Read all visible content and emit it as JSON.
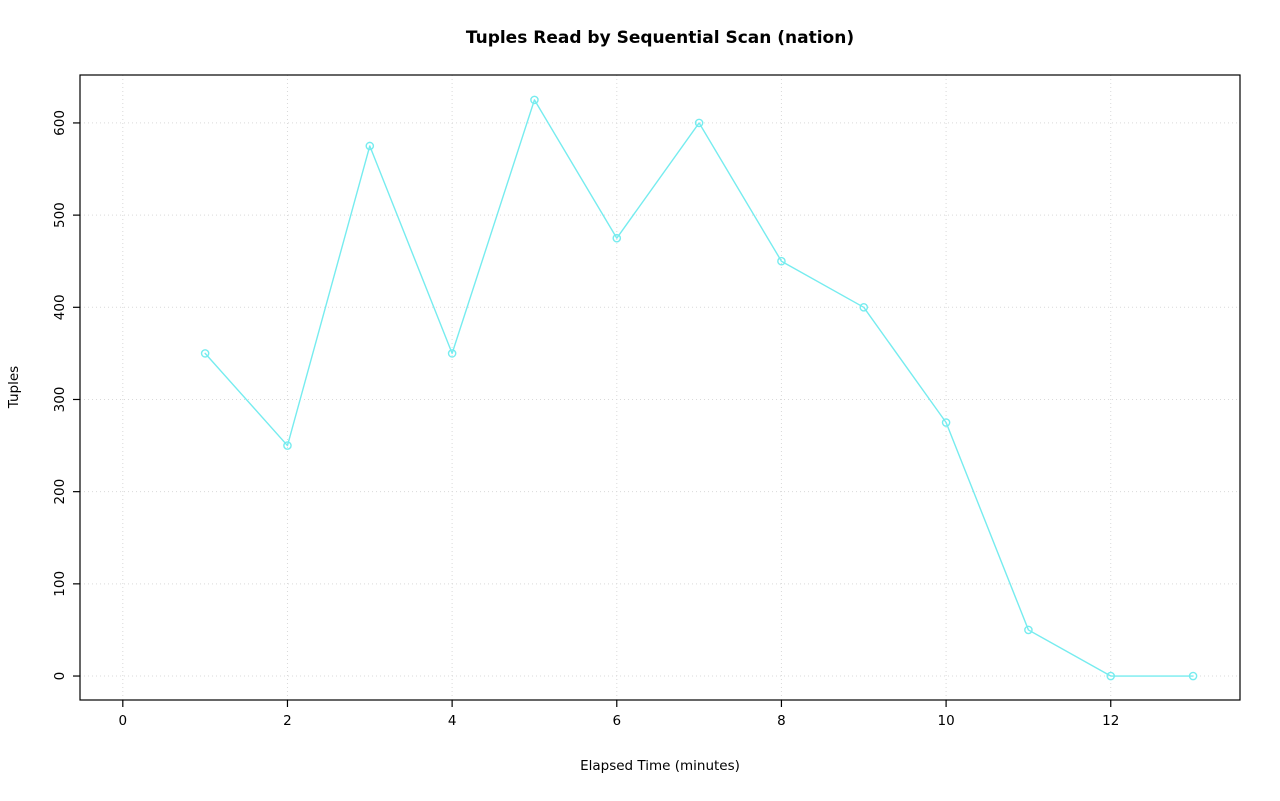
{
  "chart_data": {
    "type": "line",
    "title": "Tuples Read by Sequential Scan (nation)",
    "xlabel": "Elapsed Time (minutes)",
    "ylabel": "Tuples",
    "x": [
      1,
      2,
      3,
      4,
      5,
      6,
      7,
      8,
      9,
      10,
      11,
      12,
      13
    ],
    "y": [
      350,
      250,
      575,
      350,
      625,
      475,
      600,
      450,
      400,
      275,
      50,
      0,
      0
    ],
    "xticks": [
      0,
      2,
      4,
      6,
      8,
      10,
      12
    ],
    "yticks": [
      0,
      100,
      200,
      300,
      400,
      500,
      600
    ],
    "xlim": [
      -0.52,
      13.57
    ],
    "ylim": [
      -26,
      652
    ],
    "grid": true,
    "legend_position": "none",
    "line_color": "#76ECEF",
    "marker": "open-circle",
    "grid_color": "#D9D9D9",
    "axis_color": "#000000",
    "background_color": "#FFFFFF"
  }
}
